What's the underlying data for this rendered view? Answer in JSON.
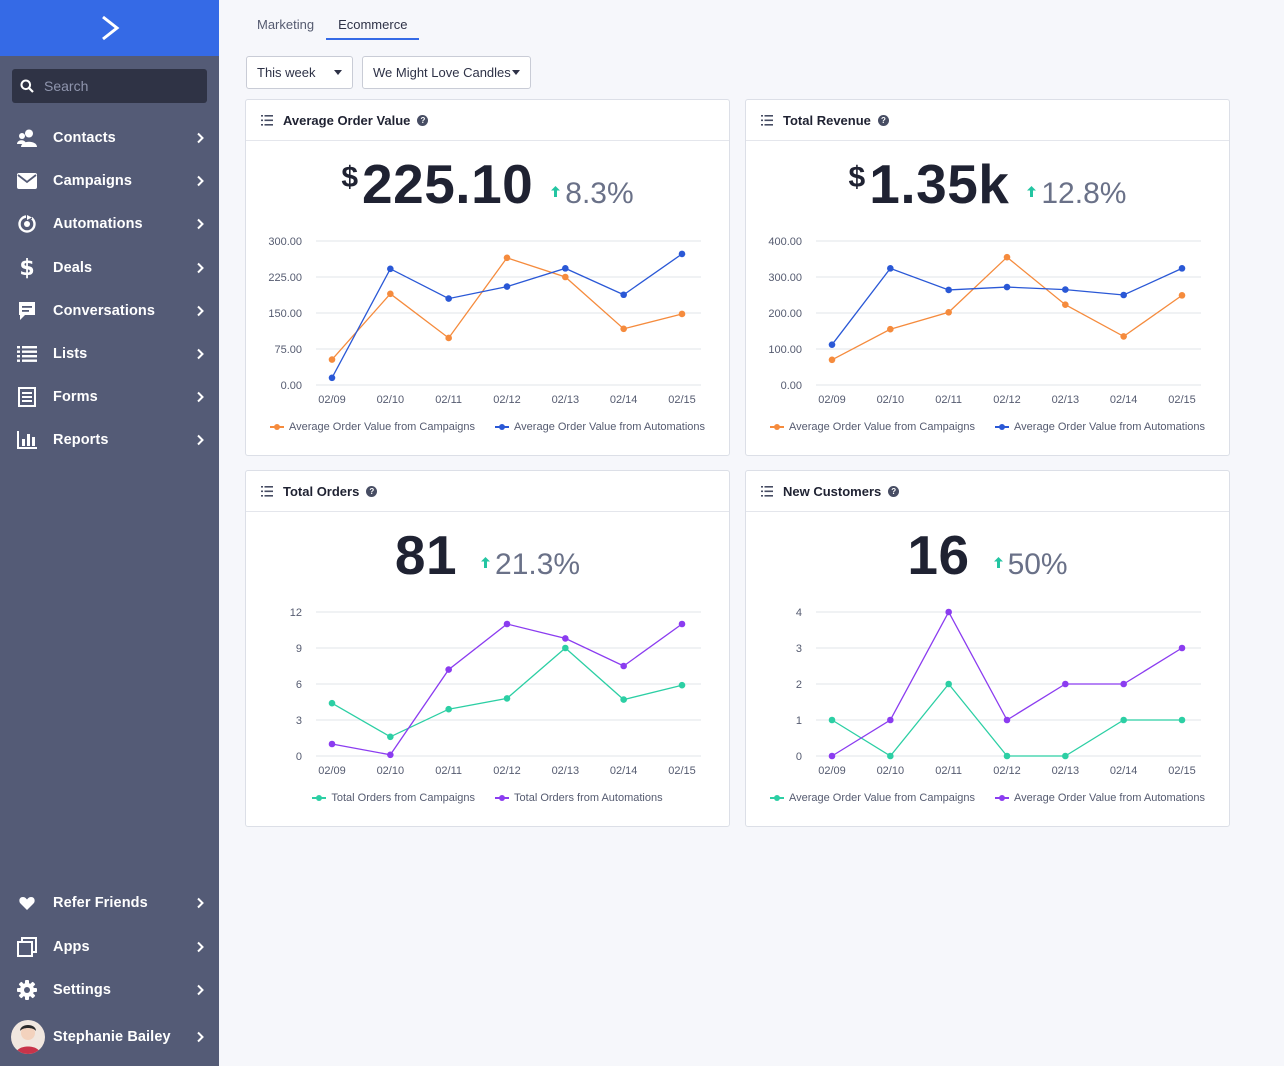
{
  "colors": {
    "sidebar": "#545b76",
    "brand": "#356ae6",
    "orange": "#f58b3d",
    "blue": "#2a58d6",
    "teal": "#2ccfa4",
    "purple": "#8b3cf0",
    "up": "#23c5a2"
  },
  "sidebar": {
    "search_placeholder": "Search",
    "items": [
      {
        "label": "Contacts",
        "icon": "contacts-icon"
      },
      {
        "label": "Campaigns",
        "icon": "envelope-icon"
      },
      {
        "label": "Automations",
        "icon": "automation-icon"
      },
      {
        "label": "Deals",
        "icon": "dollar-icon"
      },
      {
        "label": "Conversations",
        "icon": "chat-icon"
      },
      {
        "label": "Lists",
        "icon": "list-icon"
      },
      {
        "label": "Forms",
        "icon": "form-icon"
      },
      {
        "label": "Reports",
        "icon": "bar-chart-icon"
      }
    ],
    "bottom": [
      {
        "label": "Refer Friends",
        "icon": "heart-icon"
      },
      {
        "label": "Apps",
        "icon": "apps-icon"
      },
      {
        "label": "Settings",
        "icon": "gear-icon"
      }
    ],
    "user": "Stephanie Bailey"
  },
  "tabs": [
    "Marketing",
    "Ecommerce"
  ],
  "filters": {
    "period": "This week",
    "store": "We Might Love Candles"
  },
  "cards": [
    {
      "title": "Average Order Value",
      "currency": "$",
      "value": "225.10",
      "change": "8.3%"
    },
    {
      "title": "Total Revenue",
      "currency": "$",
      "value": "1.35k",
      "change": "12.8%"
    },
    {
      "title": "Total Orders",
      "currency": "",
      "value": "81",
      "change": "21.3%"
    },
    {
      "title": "New Customers",
      "currency": "",
      "value": "16",
      "change": "50%"
    }
  ],
  "chart_data": [
    {
      "type": "line",
      "x": [
        "02/09",
        "02/10",
        "02/11",
        "02/12",
        "02/13",
        "02/14",
        "02/15"
      ],
      "yticks": [
        "0.00",
        "75.00",
        "150.00",
        "225.00",
        "300.00"
      ],
      "ylim": [
        0,
        300
      ],
      "series": [
        {
          "name": "Average Order Value from Campaigns",
          "color": "#f58b3d",
          "values": [
            53,
            190,
            98,
            265,
            225,
            117,
            148
          ]
        },
        {
          "name": "Average Order Value from Automations",
          "color": "#2a58d6",
          "values": [
            15,
            242,
            180,
            205,
            243,
            188,
            273
          ]
        }
      ]
    },
    {
      "type": "line",
      "x": [
        "02/09",
        "02/10",
        "02/11",
        "02/12",
        "02/13",
        "02/14",
        "02/15"
      ],
      "yticks": [
        "0.00",
        "100.00",
        "200.00",
        "300.00",
        "400.00"
      ],
      "ylim": [
        0,
        400
      ],
      "series": [
        {
          "name": "Average Order Value from Campaigns",
          "color": "#f58b3d",
          "values": [
            70,
            155,
            202,
            355,
            223,
            135,
            249
          ]
        },
        {
          "name": "Average Order Value from Automations",
          "color": "#2a58d6",
          "values": [
            112,
            324,
            264,
            272,
            265,
            250,
            324
          ]
        }
      ]
    },
    {
      "type": "line",
      "x": [
        "02/09",
        "02/10",
        "02/11",
        "02/12",
        "02/13",
        "02/14",
        "02/15"
      ],
      "yticks": [
        "0",
        "3",
        "6",
        "9",
        "12"
      ],
      "ylim": [
        0,
        12
      ],
      "series": [
        {
          "name": "Total Orders from Campaigns",
          "color": "#2ccfa4",
          "values": [
            4.4,
            1.6,
            3.9,
            4.8,
            9.0,
            4.7,
            5.9
          ]
        },
        {
          "name": "Total Orders from Automations",
          "color": "#8b3cf0",
          "values": [
            1.0,
            0.1,
            7.2,
            11.0,
            9.8,
            7.5,
            11.0
          ]
        }
      ]
    },
    {
      "type": "line",
      "x": [
        "02/09",
        "02/10",
        "02/11",
        "02/12",
        "02/13",
        "02/14",
        "02/15"
      ],
      "yticks": [
        "0",
        "1",
        "2",
        "3",
        "4"
      ],
      "ylim": [
        0,
        4
      ],
      "series": [
        {
          "name": "Average Order Value from Campaigns",
          "color": "#2ccfa4",
          "values": [
            1,
            0,
            2,
            0,
            0,
            1,
            1
          ]
        },
        {
          "name": "Average Order Value from Automations",
          "color": "#8b3cf0",
          "values": [
            0,
            1,
            4,
            1,
            2,
            2,
            3
          ]
        }
      ]
    }
  ]
}
